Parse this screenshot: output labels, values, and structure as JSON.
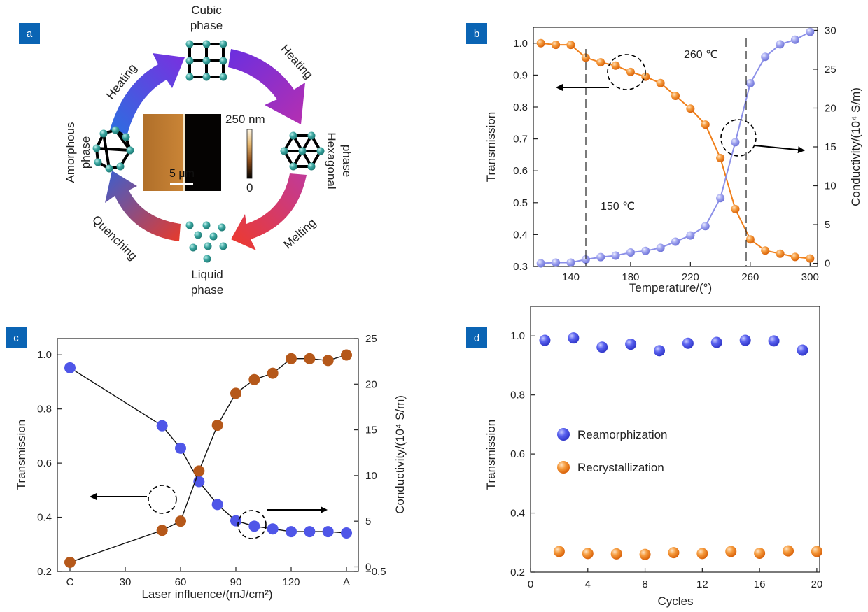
{
  "colors": {
    "badge": "#0a64b4",
    "orange": "#f07f1a",
    "lavender": "#8b8fe8",
    "blue": "#4f56e8",
    "brown": "#b5581a",
    "teal": "#39a49e"
  },
  "panels": {
    "a": {
      "badge": "a"
    },
    "b": {
      "badge": "b"
    },
    "c": {
      "badge": "c"
    },
    "d": {
      "badge": "d"
    }
  },
  "diagram": {
    "phases": {
      "cubic": [
        "Cubic",
        "phase"
      ],
      "hexagonal": [
        "Hexagonal",
        "phase"
      ],
      "liquid": [
        "Liquid",
        "phase"
      ],
      "amorphous": [
        "Amorphous",
        "phase"
      ]
    },
    "arrows": {
      "heating_left": "Heating",
      "heating_right": "Heating",
      "melting": "Melting",
      "quenching": "Quenching"
    },
    "afm": {
      "scale_bar": "5 μm",
      "cbar_max": "250 nm",
      "cbar_min": "0"
    }
  },
  "chart_data": [
    {
      "panel": "b",
      "type": "line",
      "xlabel": "Temperature/(°)",
      "ylabel": "Transmission",
      "y2label": "Conductivity/(10⁴ S/m)",
      "xlim": [
        115,
        305
      ],
      "ylim": [
        0.3,
        1.05
      ],
      "y2lim": [
        -0.4,
        30.4
      ],
      "xticks": [
        140,
        180,
        220,
        260,
        300
      ],
      "yticks": [
        "0.3",
        "0.4",
        "0.5",
        "0.6",
        "0.7",
        "0.8",
        "0.9",
        "1.0"
      ],
      "y2ticks": [
        "0",
        "5",
        "10",
        "15",
        "20",
        "25",
        "30"
      ],
      "series": [
        {
          "axis": "left",
          "x": [
            120,
            130,
            140,
            150,
            160,
            170,
            180,
            190,
            200,
            210,
            220,
            230,
            240,
            250,
            260,
            270,
            280,
            290,
            300
          ],
          "values": [
            1.0,
            0.995,
            0.995,
            0.955,
            0.94,
            0.93,
            0.91,
            0.895,
            0.875,
            0.835,
            0.795,
            0.745,
            0.64,
            0.48,
            0.385,
            0.35,
            0.34,
            0.33,
            0.325
          ]
        },
        {
          "axis": "right",
          "x": [
            120,
            130,
            140,
            150,
            160,
            170,
            180,
            190,
            200,
            210,
            220,
            230,
            240,
            250,
            260,
            270,
            280,
            290,
            300
          ],
          "values": [
            0.0,
            0.1,
            0.1,
            0.5,
            0.8,
            1.0,
            1.4,
            1.6,
            2.0,
            2.8,
            3.6,
            4.8,
            8.4,
            15.6,
            23.2,
            26.6,
            28.2,
            28.8,
            29.8
          ]
        }
      ],
      "annotations": {
        "t1": "150 ℃",
        "t2": "260 ℃"
      }
    },
    {
      "panel": "c",
      "type": "line",
      "xlabel": "Laser influence/(mJ/cm²)",
      "ylabel": "Transmission",
      "y2label": "Conductivity/(10⁴ S/m)",
      "ylim": [
        0.2,
        1.06
      ],
      "y2lim": [
        -0.5,
        25.0
      ],
      "xticks": [
        "C",
        "30",
        "60",
        "90",
        "120",
        "A"
      ],
      "yticks": [
        "0.2",
        "0.4",
        "0.6",
        "0.8",
        "1.0"
      ],
      "y2ticks": [
        "−0.5",
        "0",
        "5",
        "10",
        "15",
        "20",
        "25"
      ],
      "series": [
        {
          "axis": "left",
          "x": [
            0,
            50,
            60,
            70,
            80,
            90,
            100,
            110,
            120,
            130,
            140,
            150
          ],
          "values": [
            0.952,
            0.738,
            0.655,
            0.532,
            0.447,
            0.387,
            0.367,
            0.357,
            0.347,
            0.347,
            0.347,
            0.342
          ]
        },
        {
          "axis": "right",
          "x": [
            0,
            50,
            60,
            70,
            80,
            90,
            100,
            110,
            120,
            130,
            140,
            150
          ],
          "values": [
            0.5,
            4.0,
            5.0,
            10.5,
            15.5,
            19.0,
            20.5,
            21.2,
            22.8,
            22.8,
            22.6,
            23.2
          ]
        }
      ]
    },
    {
      "panel": "d",
      "type": "scatter",
      "xlabel": "Cycles",
      "ylabel": "Transmission",
      "xlim": [
        0,
        20.2
      ],
      "ylim": [
        0.2,
        1.1
      ],
      "xticks": [
        "0",
        "4",
        "8",
        "12",
        "16",
        "20"
      ],
      "yticks": [
        "0.2",
        "0.4",
        "0.6",
        "0.8",
        "1.0"
      ],
      "legend_placement": "middle-left",
      "series": [
        {
          "name": "Reamorphization",
          "x": [
            1,
            3,
            5,
            7,
            9,
            11,
            13,
            15,
            17,
            19
          ],
          "values": [
            0.985,
            0.993,
            0.962,
            0.972,
            0.95,
            0.975,
            0.978,
            0.985,
            0.983,
            0.952
          ]
        },
        {
          "name": "Recrystallization",
          "x": [
            2,
            4,
            6,
            8,
            10,
            12,
            14,
            16,
            18,
            20
          ],
          "values": [
            0.27,
            0.263,
            0.262,
            0.26,
            0.266,
            0.263,
            0.27,
            0.264,
            0.272,
            0.27
          ]
        }
      ]
    }
  ]
}
